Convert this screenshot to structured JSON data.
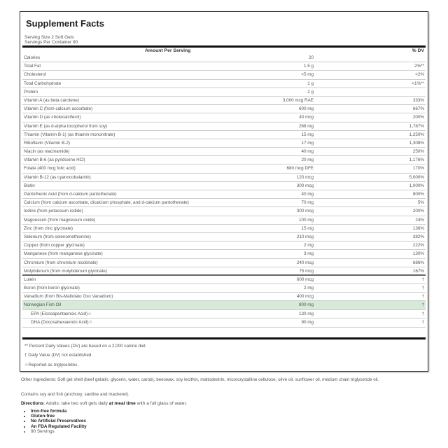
{
  "title": "Supplement Facts",
  "serving_size": "Serving Size 2 Soft Gels",
  "servings_per_container": "Servings Per Container 90",
  "header": {
    "amount": "Amount Per Serving",
    "dv": "% DV"
  },
  "rows": [
    {
      "name": "Calories",
      "amount": "20",
      "dv": ""
    },
    {
      "name": "Total Fat",
      "amount": "1.5 g",
      "dv": "2%**"
    },
    {
      "name": "Cholesterol",
      "amount": "<5 mg",
      "dv": "<2%"
    },
    {
      "name": "Total Carbohydrate",
      "amount": "1 g",
      "dv": "<1%**"
    },
    {
      "name": "Protein",
      "amount": "1 g",
      "dv": ""
    },
    {
      "name": "Vitamin A (as beta carotene)",
      "amount": "3,000 mcg RAE",
      "dv": "333%"
    },
    {
      "name": "Vitamin C (from calcium ascorbate)",
      "amount": "600 mg",
      "dv": "667%"
    },
    {
      "name": "Vitamin D (as cholecalciferol)",
      "amount": "40 mcg",
      "dv": "200%"
    },
    {
      "name": "Vitamin E (as d-alpha tocopherol from soy)",
      "amount": "268 mg",
      "dv": "1,787%"
    },
    {
      "name": "Thiamin (Vitamin B-1) (as thiamin mononitrate)",
      "amount": "15 mg",
      "dv": "1,250%"
    },
    {
      "name": "Riboflavin (Vitamin B-2)",
      "amount": "17 mg",
      "dv": "1,308%"
    },
    {
      "name": "Niacin (as niacinamide)",
      "amount": "40 mg",
      "dv": "250%"
    },
    {
      "name": "Vitamin B-6 (as pyridoxine HCl)",
      "amount": "20 mg",
      "dv": "1,176%"
    },
    {
      "name": "Folate (400 mcg folic acid)",
      "amount": "680 mcg DFE",
      "dv": "170%"
    },
    {
      "name": "Vitamin B-12 (as cyanocobalamin)",
      "amount": "120 mcg",
      "dv": "5,000%"
    },
    {
      "name": "Biotin",
      "amount": "300 mcg",
      "dv": "1,000%"
    },
    {
      "name": "Pantothenic Acid (from d-calcium pantothenate)",
      "amount": "40 mg",
      "dv": "800%"
    },
    {
      "name": "Calcium (from calcium ascorbate, dicalcium phosphate, and d-calcium pantothenate)",
      "amount": "70 mg",
      "dv": "5%"
    },
    {
      "name": "Iodine (from potassium iodide)",
      "amount": "300 mcg",
      "dv": "200%"
    },
    {
      "name": "Magnesium (from magnesium oxide)",
      "amount": "100 mg",
      "dv": "24%"
    },
    {
      "name": "Zinc (from zinc glycinate)",
      "amount": "15 mg",
      "dv": "136%"
    },
    {
      "name": "Selenium (from selenomethionine)",
      "amount": "210 mcg",
      "dv": "382%"
    },
    {
      "name": "Copper (from copper glycinate)",
      "amount": "2 mg",
      "dv": "222%"
    },
    {
      "name": "Manganese (from manganese glycinate)",
      "amount": "3 mg",
      "dv": "130%"
    },
    {
      "name": "Chromium (from chromium nicotinate)",
      "amount": "240 mcg",
      "dv": "686%"
    },
    {
      "name": "Molybdenum (from molybdenum glycinate)",
      "amount": "75 mcg",
      "dv": "167%",
      "sep": true
    },
    {
      "name": "Lutein",
      "amount": "600 mcg",
      "dv": "†"
    },
    {
      "name": "Boron (from boron glycinate)",
      "amount": "2 mg",
      "dv": "†"
    },
    {
      "name": "Vanadium (from Bis-Maltolato Oxo Vanadium)",
      "amount": "400 mcg",
      "dv": "†"
    },
    {
      "name": "Norwegian Fish Oil",
      "amount": "800 mg",
      "dv": "†",
      "highlight": true
    },
    {
      "name": "EPA (Eicosapentaenoic Acid)☆",
      "amount": "130 mg",
      "dv": "†",
      "sub": true
    },
    {
      "name": "DHA (Docosahexaenoic Acid)☆",
      "amount": "90 mg",
      "dv": "†",
      "sub": true
    }
  ],
  "footnotes": [
    "** Percent Daily Values (DV) are based on a 2,000 calorie diet.",
    "† Daily Value (DV) not established.",
    "☆Reported as triglycerides."
  ],
  "other_ingredients": "Other Ingredients: Soft gel shell (beef gelatin, glycerin, water, carob), beeswax, soy lecithin, maltodextrin, microcrystalline cellulose, olive oil, sunflower oil, medium chain triglyceride oil.",
  "contains": "Contains soy and fish (anchovy, sardine and mackerel).",
  "directions": {
    "label": "Directions",
    "pre": ": Adults: take two soft gels daily ",
    "bold": "at meal time",
    "post": " with a full glass of water."
  },
  "bullets": [
    "Iron-free formula",
    "Gluten-free",
    "No Artificial Preservatives",
    "An FDA Regulated Facility",
    "90 Servings"
  ]
}
